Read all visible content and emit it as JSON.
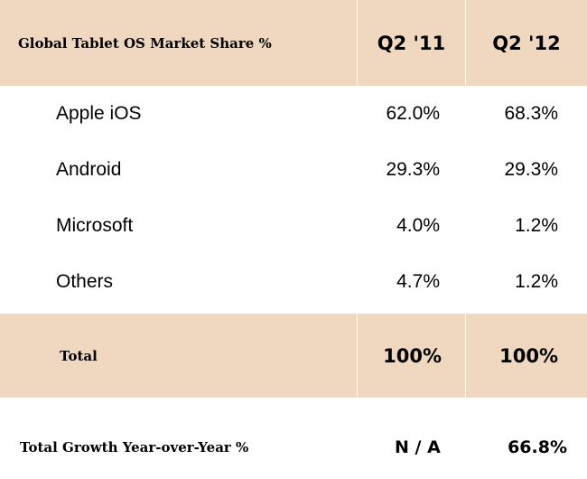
{
  "chart_data": {
    "type": "table",
    "title": "Global Tablet OS Market Share %",
    "columns": [
      "Q2 '11",
      "Q2 '12"
    ],
    "rows": [
      {
        "label": "Apple iOS",
        "values": [
          "62.0%",
          "68.3%"
        ]
      },
      {
        "label": "Android",
        "values": [
          "29.3%",
          "29.3%"
        ]
      },
      {
        "label": "Microsoft",
        "values": [
          "4.0%",
          "1.2%"
        ]
      },
      {
        "label": "Others",
        "values": [
          "4.7%",
          "1.2%"
        ]
      }
    ],
    "total": {
      "label": "Total",
      "values": [
        "100%",
        "100%"
      ]
    },
    "growth": {
      "label": "Total Growth Year-over-Year %",
      "values": [
        "N / A",
        "66.8%"
      ]
    }
  },
  "colors": {
    "header_bg": "#f0d7bf",
    "body_bg": "#ffffff"
  }
}
